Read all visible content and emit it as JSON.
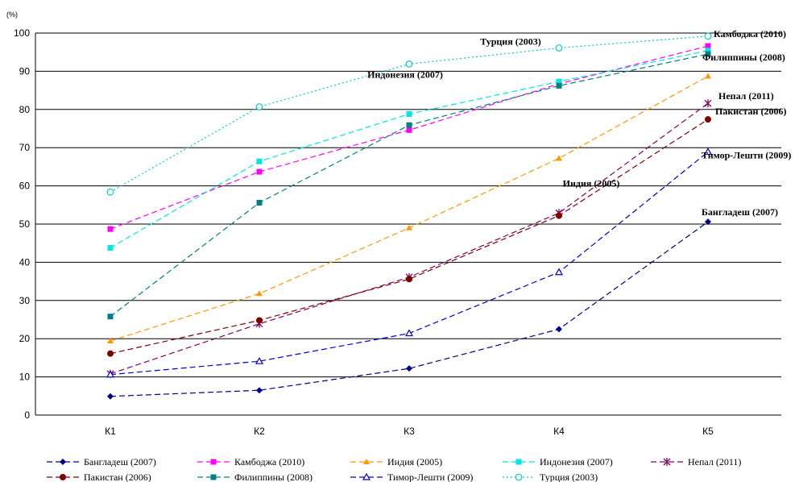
{
  "chart_data": {
    "type": "line",
    "unit_label": "(%)",
    "categories": [
      "К1",
      "К2",
      "К3",
      "К4",
      "К5"
    ],
    "ylim": [
      0,
      100
    ],
    "yticks": [
      0,
      10,
      20,
      30,
      40,
      50,
      60,
      70,
      80,
      90,
      100
    ],
    "grid": "horizontal",
    "legend_position": "bottom",
    "series": [
      {
        "name": "Бангладеш (2007)",
        "color": "#00008B",
        "marker": "diamond",
        "values": [
          4.9,
          6.5,
          12.2,
          22.5,
          50.6
        ]
      },
      {
        "name": "Камбоджа (2010)",
        "color": "#FF00FF",
        "marker": "square",
        "values": [
          48.7,
          63.7,
          74.6,
          86.7,
          96.6
        ]
      },
      {
        "name": "Индия (2005)",
        "color": "#FF9900",
        "marker": "triangle",
        "values": [
          19.4,
          31.8,
          49.0,
          67.2,
          88.7
        ]
      },
      {
        "name": "Индонезия (2007)",
        "color": "#00E5E5",
        "marker": "square",
        "values": [
          43.8,
          66.4,
          78.8,
          87.3,
          95.4
        ]
      },
      {
        "name": "Непал (2011)",
        "color": "#800060",
        "marker": "star",
        "values": [
          10.8,
          23.9,
          36.1,
          52.9,
          81.6
        ]
      },
      {
        "name": "Пакистан (2006)",
        "color": "#800000",
        "marker": "circle",
        "values": [
          16.1,
          24.8,
          35.6,
          52.2,
          77.4
        ]
      },
      {
        "name": "Филиппины (2008)",
        "color": "#008080",
        "marker": "square",
        "values": [
          25.8,
          55.6,
          75.9,
          86.2,
          94.5
        ]
      },
      {
        "name": "Тимор-Лешти (2009)",
        "color": "#0000CC",
        "marker": "triangle-open",
        "values": [
          10.6,
          14.1,
          21.4,
          37.4,
          68.9
        ]
      },
      {
        "name": "Турция (2003)",
        "color": "#00CCCC",
        "marker": "circle-open",
        "values": [
          58.4,
          80.7,
          91.9,
          96.1,
          99.2
        ]
      }
    ],
    "annotations": [
      {
        "text": "Турция (2003)",
        "series": 8,
        "point": 3
      },
      {
        "text": "Индонезия (2007)",
        "series": 3,
        "point": 2
      },
      {
        "text": "Индия (2005)",
        "series": 2,
        "point": 3
      },
      {
        "text": "Камбоджа (2010)",
        "series": 1,
        "point": 4
      },
      {
        "text": "Филиппины (2008)",
        "series": 6,
        "point": 4
      },
      {
        "text": "Непал (2011)",
        "series": 4,
        "point": 4
      },
      {
        "text": "Пакистан (2006)",
        "series": 5,
        "point": 4
      },
      {
        "text": "Тимор-Лешти (2009)",
        "series": 7,
        "point": 4
      },
      {
        "text": "Бангладеш (2007)",
        "series": 0,
        "point": 4
      }
    ]
  }
}
